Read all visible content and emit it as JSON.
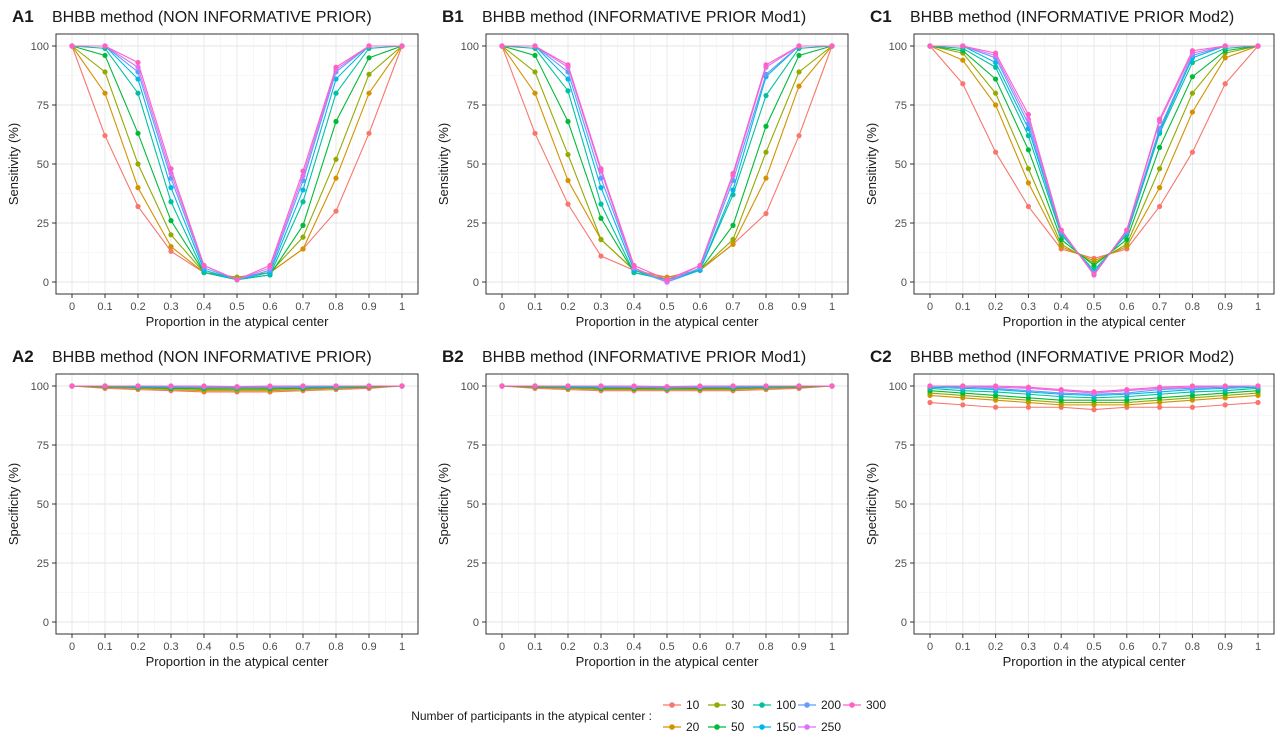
{
  "legend": {
    "title": "Number of participants in the atypical center :",
    "entries": [
      {
        "label": "10",
        "color": "#F8766D"
      },
      {
        "label": "20",
        "color": "#D39200"
      },
      {
        "label": "30",
        "color": "#93AA00"
      },
      {
        "label": "50",
        "color": "#00BA38"
      },
      {
        "label": "100",
        "color": "#00C19F"
      },
      {
        "label": "150",
        "color": "#00B9E3"
      },
      {
        "label": "200",
        "color": "#619CFF"
      },
      {
        "label": "250",
        "color": "#DB72FB"
      },
      {
        "label": "300",
        "color": "#FF61C3"
      }
    ]
  },
  "chart_data": [
    {
      "tag": "A1",
      "title": "BHBB method (NON INFORMATIVE PRIOR)",
      "type": "line",
      "xlabel": "Proportion in the atypical center",
      "ylabel": "Sensitivity (%)",
      "x": [
        0,
        0.1,
        0.2,
        0.3,
        0.4,
        0.5,
        0.6,
        0.7,
        0.8,
        0.9,
        1
      ],
      "x_ticks": [
        "0",
        "0.1",
        "0.2",
        "0.3",
        "0.4",
        "0.5",
        "0.6",
        "0.7",
        "0.8",
        "0.9",
        "1"
      ],
      "y_ticks": [
        "0",
        "25",
        "50",
        "75",
        "100"
      ],
      "ylim": [
        0,
        100
      ],
      "grid": true,
      "series": [
        {
          "name": "10",
          "values": [
            100,
            62,
            32,
            13,
            4,
            2,
            4,
            14,
            30,
            63,
            100
          ]
        },
        {
          "name": "20",
          "values": [
            100,
            80,
            40,
            15,
            4,
            2,
            4,
            14,
            44,
            80,
            100
          ]
        },
        {
          "name": "30",
          "values": [
            100,
            89,
            50,
            20,
            4,
            2,
            4,
            19,
            52,
            88,
            100
          ]
        },
        {
          "name": "50",
          "values": [
            100,
            96,
            63,
            26,
            4,
            1,
            3,
            24,
            68,
            95,
            100
          ]
        },
        {
          "name": "100",
          "values": [
            100,
            99,
            80,
            34,
            4,
            1,
            3,
            34,
            80,
            99,
            100
          ]
        },
        {
          "name": "150",
          "values": [
            100,
            100,
            86,
            40,
            5,
            1,
            4,
            39,
            86,
            100,
            100
          ]
        },
        {
          "name": "200",
          "values": [
            100,
            100,
            89,
            44,
            6,
            1,
            5,
            43,
            89,
            100,
            100
          ]
        },
        {
          "name": "250",
          "values": [
            100,
            100,
            91,
            46,
            7,
            1,
            6,
            45,
            90,
            100,
            100
          ]
        },
        {
          "name": "300",
          "values": [
            100,
            100,
            93,
            48,
            7,
            1,
            7,
            47,
            91,
            100,
            100
          ]
        }
      ]
    },
    {
      "tag": "B1",
      "title": "BHBB method (INFORMATIVE PRIOR Mod1)",
      "type": "line",
      "xlabel": "Proportion in the atypical center",
      "ylabel": "Sensitivity (%)",
      "x": [
        0,
        0.1,
        0.2,
        0.3,
        0.4,
        0.5,
        0.6,
        0.7,
        0.8,
        0.9,
        1
      ],
      "x_ticks": [
        "0",
        "0.1",
        "0.2",
        "0.3",
        "0.4",
        "0.5",
        "0.6",
        "0.7",
        "0.8",
        "0.9",
        "1"
      ],
      "y_ticks": [
        "0",
        "25",
        "50",
        "75",
        "100"
      ],
      "ylim": [
        0,
        100
      ],
      "grid": true,
      "series": [
        {
          "name": "10",
          "values": [
            100,
            63,
            33,
            11,
            5,
            2,
            5,
            16,
            29,
            62,
            100
          ]
        },
        {
          "name": "20",
          "values": [
            100,
            80,
            43,
            18,
            5,
            2,
            5,
            16,
            44,
            83,
            100
          ]
        },
        {
          "name": "30",
          "values": [
            100,
            89,
            54,
            18,
            5,
            1,
            5,
            18,
            55,
            89,
            100
          ]
        },
        {
          "name": "50",
          "values": [
            100,
            96,
            68,
            27,
            4,
            1,
            5,
            24,
            66,
            96,
            100
          ]
        },
        {
          "name": "100",
          "values": [
            100,
            99,
            81,
            33,
            4,
            1,
            5,
            37,
            79,
            99,
            100
          ]
        },
        {
          "name": "150",
          "values": [
            100,
            100,
            86,
            40,
            5,
            0,
            5,
            39,
            87,
            100,
            100
          ]
        },
        {
          "name": "200",
          "values": [
            100,
            100,
            89,
            44,
            6,
            0,
            6,
            43,
            88,
            100,
            100
          ]
        },
        {
          "name": "250",
          "values": [
            100,
            100,
            91,
            47,
            6,
            0,
            7,
            45,
            91,
            100,
            100
          ]
        },
        {
          "name": "300",
          "values": [
            100,
            100,
            92,
            48,
            7,
            1,
            7,
            46,
            92,
            100,
            100
          ]
        }
      ]
    },
    {
      "tag": "C1",
      "title": "BHBB method (INFORMATIVE PRIOR Mod2)",
      "type": "line",
      "xlabel": "Proportion in the atypical center",
      "ylabel": "Sensitivity (%)",
      "x": [
        0,
        0.1,
        0.2,
        0.3,
        0.4,
        0.5,
        0.6,
        0.7,
        0.8,
        0.9,
        1
      ],
      "x_ticks": [
        "0",
        "0.1",
        "0.2",
        "0.3",
        "0.4",
        "0.5",
        "0.6",
        "0.7",
        "0.8",
        "0.9",
        "1"
      ],
      "y_ticks": [
        "0",
        "25",
        "50",
        "75",
        "100"
      ],
      "ylim": [
        0,
        100
      ],
      "grid": true,
      "series": [
        {
          "name": "10",
          "values": [
            100,
            84,
            55,
            32,
            14,
            10,
            14,
            32,
            55,
            84,
            100
          ]
        },
        {
          "name": "20",
          "values": [
            100,
            94,
            75,
            42,
            15,
            9,
            15,
            40,
            72,
            95,
            100
          ]
        },
        {
          "name": "30",
          "values": [
            100,
            97,
            80,
            48,
            16,
            8,
            16,
            48,
            80,
            97,
            100
          ]
        },
        {
          "name": "50",
          "values": [
            100,
            98,
            86,
            56,
            18,
            7,
            18,
            57,
            87,
            98,
            100
          ]
        },
        {
          "name": "100",
          "values": [
            100,
            99,
            91,
            62,
            20,
            5,
            20,
            63,
            93,
            99,
            100
          ]
        },
        {
          "name": "150",
          "values": [
            100,
            100,
            93,
            65,
            21,
            4,
            21,
            64,
            95,
            100,
            100
          ]
        },
        {
          "name": "200",
          "values": [
            100,
            100,
            95,
            67,
            21,
            4,
            21,
            65,
            96,
            100,
            100
          ]
        },
        {
          "name": "250",
          "values": [
            100,
            100,
            96,
            69,
            22,
            3,
            22,
            68,
            97,
            100,
            100
          ]
        },
        {
          "name": "300",
          "values": [
            100,
            100,
            97,
            71,
            22,
            3,
            22,
            69,
            98,
            100,
            100
          ]
        }
      ]
    },
    {
      "tag": "A2",
      "title": "BHBB method (NON INFORMATIVE PRIOR)",
      "type": "line",
      "xlabel": "Proportion in the atypical center",
      "ylabel": "Specificity (%)",
      "x": [
        0,
        0.1,
        0.2,
        0.3,
        0.4,
        0.5,
        0.6,
        0.7,
        0.8,
        0.9,
        1
      ],
      "x_ticks": [
        "0",
        "0.1",
        "0.2",
        "0.3",
        "0.4",
        "0.5",
        "0.6",
        "0.7",
        "0.8",
        "0.9",
        "1"
      ],
      "y_ticks": [
        "0",
        "25",
        "50",
        "75",
        "100"
      ],
      "ylim": [
        0,
        100
      ],
      "grid": true,
      "series": [
        {
          "name": "10",
          "values": [
            100,
            99,
            98.5,
            98,
            97.5,
            97.5,
            97.5,
            98,
            98.5,
            99,
            100
          ]
        },
        {
          "name": "20",
          "values": [
            100,
            99.5,
            99,
            98.5,
            98,
            98,
            98,
            98.5,
            99,
            99.5,
            100
          ]
        },
        {
          "name": "30",
          "values": [
            100,
            99.5,
            99,
            99,
            98.5,
            98.5,
            98.5,
            99,
            99,
            99.5,
            100
          ]
        },
        {
          "name": "50",
          "values": [
            100,
            99.7,
            99.5,
            99,
            99,
            99,
            99,
            99,
            99.5,
            99.7,
            100
          ]
        },
        {
          "name": "100",
          "values": [
            100,
            100,
            99.5,
            99.5,
            99.5,
            99,
            99.5,
            99.5,
            99.5,
            100,
            100
          ]
        },
        {
          "name": "150",
          "values": [
            100,
            100,
            99.7,
            99.5,
            99.5,
            99.5,
            99.5,
            99.5,
            99.7,
            100,
            100
          ]
        },
        {
          "name": "200",
          "values": [
            100,
            100,
            100,
            99.7,
            99.7,
            99.5,
            99.7,
            99.7,
            100,
            100,
            100
          ]
        },
        {
          "name": "250",
          "values": [
            100,
            100,
            100,
            100,
            99.7,
            99.7,
            99.7,
            100,
            100,
            100,
            100
          ]
        },
        {
          "name": "300",
          "values": [
            100,
            100,
            100,
            100,
            100,
            99.7,
            100,
            100,
            100,
            100,
            100
          ]
        }
      ]
    },
    {
      "tag": "B2",
      "title": "BHBB method (INFORMATIVE PRIOR Mod1)",
      "type": "line",
      "xlabel": "Proportion in the atypical center",
      "ylabel": "Specificity (%)",
      "x": [
        0,
        0.1,
        0.2,
        0.3,
        0.4,
        0.5,
        0.6,
        0.7,
        0.8,
        0.9,
        1
      ],
      "x_ticks": [
        "0",
        "0.1",
        "0.2",
        "0.3",
        "0.4",
        "0.5",
        "0.6",
        "0.7",
        "0.8",
        "0.9",
        "1"
      ],
      "y_ticks": [
        "0",
        "25",
        "50",
        "75",
        "100"
      ],
      "ylim": [
        0,
        100
      ],
      "grid": true,
      "series": [
        {
          "name": "10",
          "values": [
            100,
            99,
            98.5,
            98,
            98,
            98,
            98,
            98,
            98.5,
            99,
            100
          ]
        },
        {
          "name": "20",
          "values": [
            100,
            99.5,
            99,
            98.5,
            98.5,
            98.5,
            98.5,
            98.5,
            99,
            99.5,
            100
          ]
        },
        {
          "name": "30",
          "values": [
            100,
            99.5,
            99,
            99,
            99,
            98.5,
            99,
            99,
            99,
            99.5,
            100
          ]
        },
        {
          "name": "50",
          "values": [
            100,
            99.7,
            99.5,
            99,
            99,
            99,
            99,
            99,
            99.5,
            99.7,
            100
          ]
        },
        {
          "name": "100",
          "values": [
            100,
            100,
            99.5,
            99.5,
            99.5,
            99,
            99.5,
            99.5,
            99.5,
            100,
            100
          ]
        },
        {
          "name": "150",
          "values": [
            100,
            100,
            99.7,
            99.5,
            99.5,
            99.5,
            99.5,
            99.5,
            99.7,
            100,
            100
          ]
        },
        {
          "name": "200",
          "values": [
            100,
            100,
            100,
            99.7,
            99.7,
            99.5,
            99.7,
            99.7,
            100,
            100,
            100
          ]
        },
        {
          "name": "250",
          "values": [
            100,
            100,
            100,
            100,
            99.7,
            99.7,
            99.7,
            100,
            100,
            100,
            100
          ]
        },
        {
          "name": "300",
          "values": [
            100,
            100,
            100,
            100,
            100,
            99.7,
            100,
            100,
            100,
            100,
            100
          ]
        }
      ]
    },
    {
      "tag": "C2",
      "title": "BHBB method (INFORMATIVE PRIOR Mod2)",
      "type": "line",
      "xlabel": "Proportion in the atypical center",
      "ylabel": "Specificity (%)",
      "x": [
        0,
        0.1,
        0.2,
        0.3,
        0.4,
        0.5,
        0.6,
        0.7,
        0.8,
        0.9,
        1
      ],
      "x_ticks": [
        "0",
        "0.1",
        "0.2",
        "0.3",
        "0.4",
        "0.5",
        "0.6",
        "0.7",
        "0.8",
        "0.9",
        "1"
      ],
      "y_ticks": [
        "0",
        "25",
        "50",
        "75",
        "100"
      ],
      "ylim": [
        0,
        100
      ],
      "grid": true,
      "series": [
        {
          "name": "10",
          "values": [
            93,
            92,
            91,
            91,
            91,
            90,
            91,
            91,
            91,
            92,
            93
          ]
        },
        {
          "name": "20",
          "values": [
            96,
            95,
            94,
            93,
            92,
            92,
            92,
            93,
            94,
            95,
            96
          ]
        },
        {
          "name": "30",
          "values": [
            97,
            96,
            95,
            94,
            93,
            93,
            93,
            94,
            95,
            96,
            97
          ]
        },
        {
          "name": "50",
          "values": [
            98,
            97,
            96,
            95,
            94,
            94,
            94,
            95,
            96,
            97,
            98
          ]
        },
        {
          "name": "100",
          "values": [
            99,
            98,
            97.5,
            96.5,
            95.5,
            95,
            95.5,
            96.5,
            97.5,
            98,
            99
          ]
        },
        {
          "name": "150",
          "values": [
            99.5,
            99,
            98.5,
            97.5,
            96.5,
            96,
            96.5,
            97.5,
            98.5,
            99,
            99.5
          ]
        },
        {
          "name": "200",
          "values": [
            100,
            99.5,
            99,
            98,
            97,
            96.5,
            97,
            98.5,
            99,
            99.5,
            100
          ]
        },
        {
          "name": "250",
          "values": [
            100,
            100,
            99.5,
            99,
            98,
            97,
            98,
            99,
            99.5,
            100,
            100
          ]
        },
        {
          "name": "300",
          "values": [
            100,
            100,
            100,
            99.5,
            98.5,
            97.5,
            98.5,
            99.5,
            100,
            100,
            100
          ]
        }
      ]
    }
  ]
}
